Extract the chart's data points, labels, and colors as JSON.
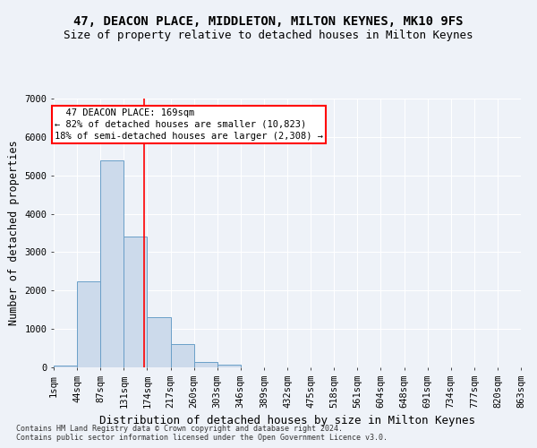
{
  "title": "47, DEACON PLACE, MIDDLETON, MILTON KEYNES, MK10 9FS",
  "subtitle": "Size of property relative to detached houses in Milton Keynes",
  "xlabel": "Distribution of detached houses by size in Milton Keynes",
  "ylabel": "Number of detached properties",
  "footnote1": "Contains HM Land Registry data © Crown copyright and database right 2024.",
  "footnote2": "Contains public sector information licensed under the Open Government Licence v3.0.",
  "bar_values": [
    50,
    2250,
    5400,
    3400,
    1300,
    600,
    150,
    80,
    0,
    0,
    0,
    0,
    0,
    0,
    0,
    0,
    0,
    0,
    0,
    0
  ],
  "bar_color": "#ccdaeb",
  "bar_edge_color": "#6a9fc8",
  "bin_labels": [
    "1sqm",
    "44sqm",
    "87sqm",
    "131sqm",
    "174sqm",
    "217sqm",
    "260sqm",
    "303sqm",
    "346sqm",
    "389sqm",
    "432sqm",
    "475sqm",
    "518sqm",
    "561sqm",
    "604sqm",
    "648sqm",
    "691sqm",
    "734sqm",
    "777sqm",
    "820sqm",
    "863sqm"
  ],
  "ylim": [
    0,
    7000
  ],
  "yticks": [
    0,
    1000,
    2000,
    3000,
    4000,
    5000,
    6000,
    7000
  ],
  "vline_x": 3.88,
  "annotation_text": "  47 DEACON PLACE: 169sqm\n← 82% of detached houses are smaller (10,823)\n18% of semi-detached houses are larger (2,308) →",
  "background_color": "#eef2f8",
  "grid_color": "#ffffff",
  "title_fontsize": 10,
  "subtitle_fontsize": 9,
  "axis_label_fontsize": 8.5,
  "tick_fontsize": 7.5,
  "annot_fontsize": 7.5
}
